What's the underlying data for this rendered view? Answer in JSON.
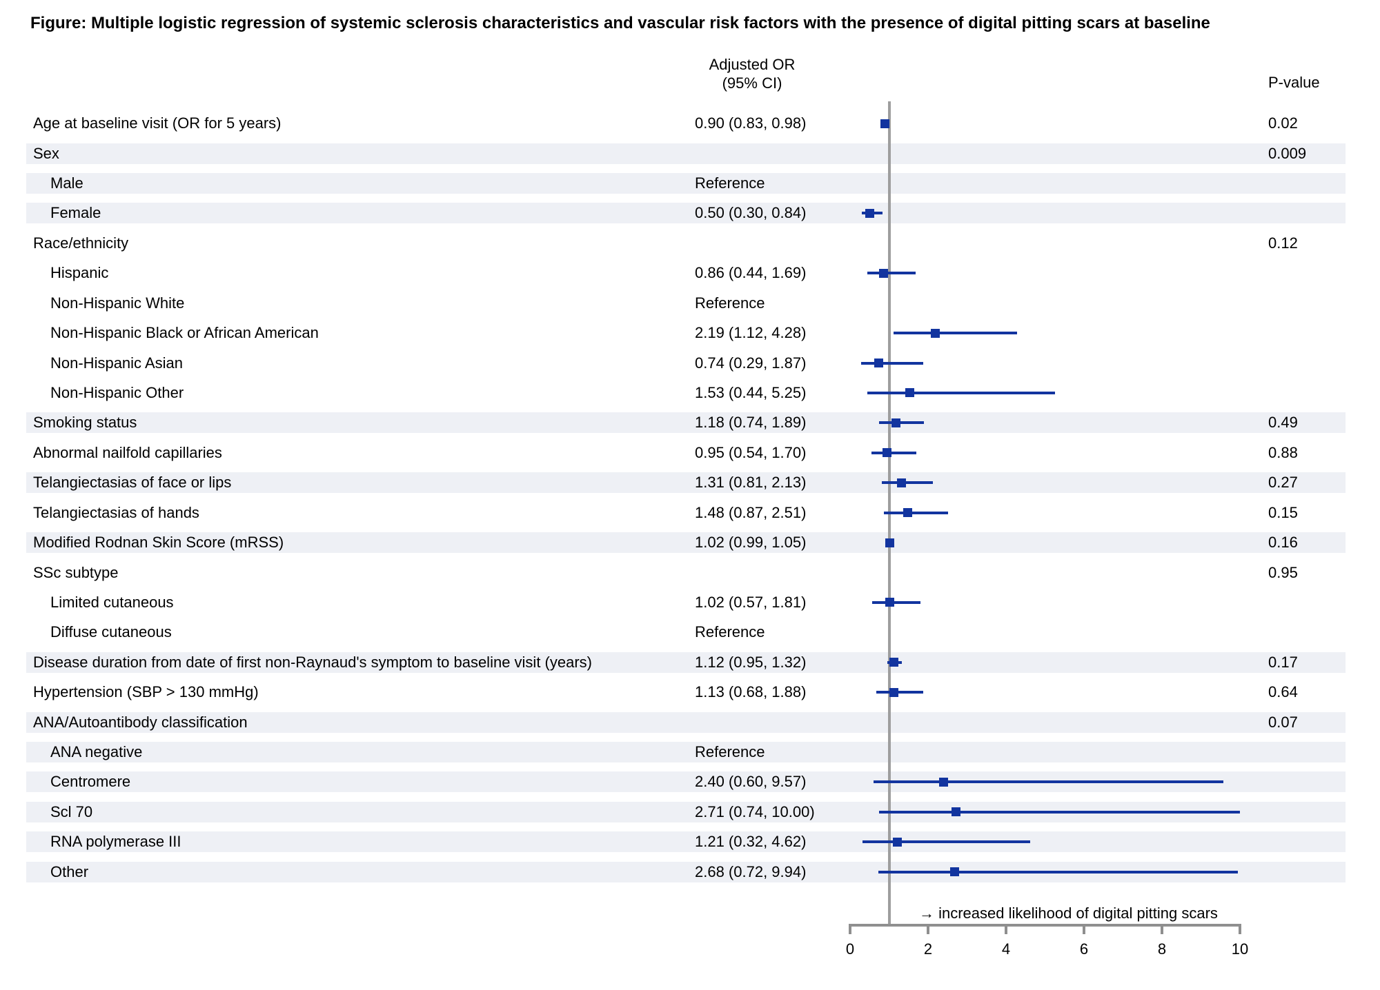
{
  "title": "Figure: Multiple logistic regression of systemic sclerosis characteristics and vascular risk factors with the presence of digital pitting scars at baseline",
  "columns": {
    "or_header_line1": "Adjusted OR",
    "or_header_line2": "(95% CI)",
    "pvalue_header": "P-value"
  },
  "colors": {
    "marker": "#12349f",
    "ci_line": "#12349f",
    "row_band": "#eef0f5",
    "axis_line": "#8f8f8f",
    "reference_line": "#9e9e9e",
    "text": "#000000"
  },
  "chart_data": {
    "type": "forest",
    "xlabel_ticks": [
      0,
      2,
      4,
      6,
      8,
      10
    ],
    "axis": {
      "min": 0,
      "max": 10,
      "reference_line": 1.0
    },
    "annotation": "→ increased likelihood of digital pitting scars",
    "rows": [
      {
        "label": "Age at baseline visit (OR for 5 years)",
        "indent": 0,
        "or_text": "0.90 (0.83, 0.98)",
        "or": 0.9,
        "lo": 0.83,
        "hi": 0.98,
        "p": "0.02",
        "shaded": false
      },
      {
        "label": "Sex",
        "indent": 0,
        "or_text": "",
        "p": "0.009",
        "shaded": true
      },
      {
        "label": "Male",
        "indent": 1,
        "or_text": "Reference",
        "shaded": true
      },
      {
        "label": "Female",
        "indent": 1,
        "or_text": "0.50 (0.30, 0.84)",
        "or": 0.5,
        "lo": 0.3,
        "hi": 0.84,
        "shaded": true
      },
      {
        "label": "Race/ethnicity",
        "indent": 0,
        "or_text": "",
        "p": "0.12",
        "shaded": false
      },
      {
        "label": "Hispanic",
        "indent": 1,
        "or_text": "0.86 (0.44, 1.69)",
        "or": 0.86,
        "lo": 0.44,
        "hi": 1.69,
        "shaded": false
      },
      {
        "label": "Non-Hispanic White",
        "indent": 1,
        "or_text": "Reference",
        "shaded": false
      },
      {
        "label": "Non-Hispanic Black or African American",
        "indent": 1,
        "or_text": "2.19 (1.12, 4.28)",
        "or": 2.19,
        "lo": 1.12,
        "hi": 4.28,
        "shaded": false
      },
      {
        "label": "Non-Hispanic Asian",
        "indent": 1,
        "or_text": "0.74 (0.29, 1.87)",
        "or": 0.74,
        "lo": 0.29,
        "hi": 1.87,
        "shaded": false
      },
      {
        "label": "Non-Hispanic Other",
        "indent": 1,
        "or_text": "1.53 (0.44, 5.25)",
        "or": 1.53,
        "lo": 0.44,
        "hi": 5.25,
        "shaded": false
      },
      {
        "label": "Smoking status",
        "indent": 0,
        "or_text": "1.18 (0.74, 1.89)",
        "or": 1.18,
        "lo": 0.74,
        "hi": 1.89,
        "p": "0.49",
        "shaded": true
      },
      {
        "label": "Abnormal nailfold capillaries",
        "indent": 0,
        "or_text": "0.95 (0.54, 1.70)",
        "or": 0.95,
        "lo": 0.54,
        "hi": 1.7,
        "p": "0.88",
        "shaded": false
      },
      {
        "label": "Telangiectasias of face or lips",
        "indent": 0,
        "or_text": "1.31 (0.81, 2.13)",
        "or": 1.31,
        "lo": 0.81,
        "hi": 2.13,
        "p": "0.27",
        "shaded": true
      },
      {
        "label": "Telangiectasias of hands",
        "indent": 0,
        "or_text": "1.48 (0.87, 2.51)",
        "or": 1.48,
        "lo": 0.87,
        "hi": 2.51,
        "p": "0.15",
        "shaded": false
      },
      {
        "label": "Modified Rodnan Skin Score (mRSS)",
        "indent": 0,
        "or_text": "1.02 (0.99, 1.05)",
        "or": 1.02,
        "lo": 0.99,
        "hi": 1.05,
        "p": "0.16",
        "shaded": true
      },
      {
        "label": "SSc subtype",
        "indent": 0,
        "or_text": "",
        "p": "0.95",
        "shaded": false
      },
      {
        "label": "Limited cutaneous",
        "indent": 1,
        "or_text": "1.02 (0.57, 1.81)",
        "or": 1.02,
        "lo": 0.57,
        "hi": 1.81,
        "shaded": false
      },
      {
        "label": "Diffuse cutaneous",
        "indent": 1,
        "or_text": "Reference",
        "shaded": false
      },
      {
        "label": "Disease duration from date of first non-Raynaud's symptom to baseline visit (years)",
        "indent": 0,
        "or_text": "1.12 (0.95, 1.32)",
        "or": 1.12,
        "lo": 0.95,
        "hi": 1.32,
        "p": "0.17",
        "shaded": true
      },
      {
        "label": "Hypertension (SBP > 130 mmHg)",
        "indent": 0,
        "or_text": "1.13 (0.68, 1.88)",
        "or": 1.13,
        "lo": 0.68,
        "hi": 1.88,
        "p": "0.64",
        "shaded": false
      },
      {
        "label": "ANA/Autoantibody classification",
        "indent": 0,
        "or_text": "",
        "p": "0.07",
        "shaded": true
      },
      {
        "label": "ANA negative",
        "indent": 1,
        "or_text": "Reference",
        "shaded": true
      },
      {
        "label": "Centromere",
        "indent": 1,
        "or_text": "2.40 (0.60, 9.57)",
        "or": 2.4,
        "lo": 0.6,
        "hi": 9.57,
        "shaded": true
      },
      {
        "label": "Scl 70",
        "indent": 1,
        "or_text": "2.71 (0.74, 10.00)",
        "or": 2.71,
        "lo": 0.74,
        "hi": 10.0,
        "shaded": true
      },
      {
        "label": "RNA polymerase III",
        "indent": 1,
        "or_text": "1.21 (0.32, 4.62)",
        "or": 1.21,
        "lo": 0.32,
        "hi": 4.62,
        "shaded": true
      },
      {
        "label": "Other",
        "indent": 1,
        "or_text": "2.68 (0.72, 9.94)",
        "or": 2.68,
        "lo": 0.72,
        "hi": 9.94,
        "shaded": true
      }
    ]
  }
}
